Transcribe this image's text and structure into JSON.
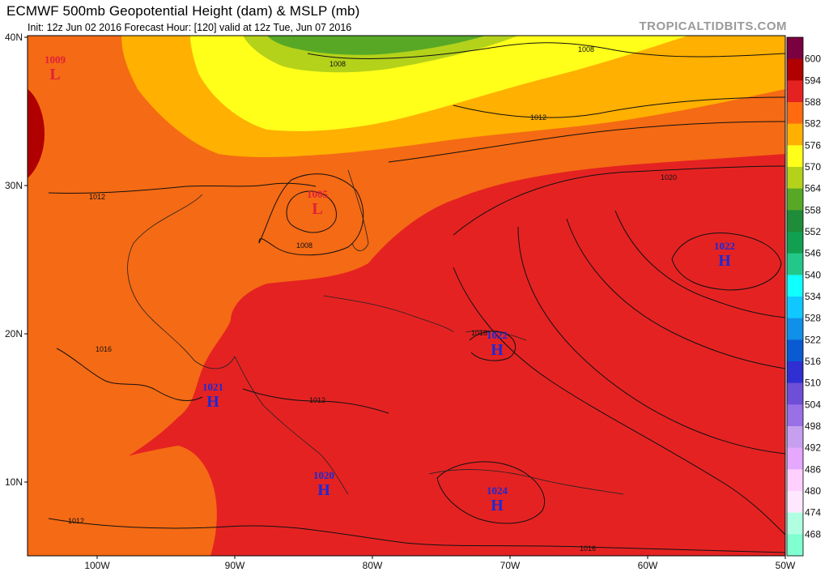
{
  "header": {
    "title": "ECMWF 500mb Geopotential Height (dam) & MSLP (mb)",
    "subtitle": "Init: 12z Jun 02 2016   Forecast Hour: [120]   valid at 12z Tue, Jun 07 2016",
    "watermark": "TROPICALTIDBITS.COM"
  },
  "axes": {
    "lat_labels": [
      "40N",
      "30N",
      "20N",
      "10N"
    ],
    "lon_labels": [
      "100W",
      "90W",
      "80W",
      "70W",
      "60W",
      "50W"
    ]
  },
  "colorbar": {
    "labels": [
      "600",
      "594",
      "588",
      "582",
      "576",
      "570",
      "564",
      "558",
      "552",
      "546",
      "540",
      "534",
      "528",
      "522",
      "516",
      "510",
      "504",
      "498",
      "492",
      "486",
      "480",
      "474",
      "468"
    ],
    "colors": [
      "#7a0040",
      "#b00000",
      "#e52222",
      "#ff6a10",
      "#ffb000",
      "#ffff1a",
      "#b4d21a",
      "#58a826",
      "#1e8c38",
      "#10a050",
      "#22c88a",
      "#10ffff",
      "#10c8ff",
      "#1090e8",
      "#0a5ad2",
      "#2f2fd2",
      "#6f4fd8",
      "#9a70e6",
      "#c79ff0",
      "#e6a8ff",
      "#ffd0ff",
      "#ffe8ff",
      "#b0ffe0",
      "#80ffd0"
    ]
  },
  "pressure_centers": [
    {
      "type": "L",
      "value": "1009"
    },
    {
      "type": "L",
      "value": "1005"
    },
    {
      "type": "H",
      "value": "1022"
    },
    {
      "type": "H",
      "value": "1022"
    },
    {
      "type": "H",
      "value": "1021"
    },
    {
      "type": "H",
      "value": "1020"
    },
    {
      "type": "H",
      "value": "1024"
    }
  ],
  "isobar_labels": [
    "1008",
    "1008",
    "1012",
    "1012",
    "1016",
    "1020",
    "1012",
    "1012",
    "1016",
    "1016",
    "1008"
  ]
}
